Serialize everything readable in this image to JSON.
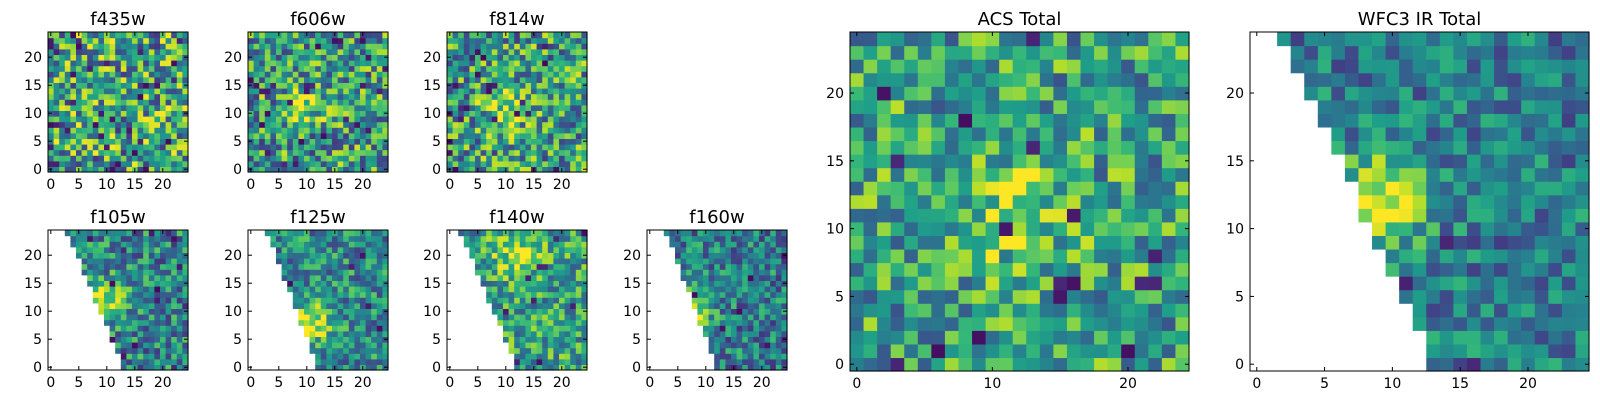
{
  "chart_data": [
    {
      "type": "heatmap",
      "title": "f435w",
      "colormap": "viridis",
      "grid": false,
      "xlim": [
        -0.5,
        24.5
      ],
      "ylim": [
        -0.5,
        24.5
      ],
      "xticks": [
        0,
        5,
        10,
        15,
        20
      ],
      "yticks": [
        0,
        5,
        10,
        15,
        20
      ],
      "xtick_labels": [
        "0",
        "5",
        "10",
        "15",
        "20"
      ],
      "ytick_labels": [
        "0",
        "5",
        "10",
        "15",
        "20"
      ],
      "pattern": {
        "kind": "noise",
        "base": 0.58,
        "amp": 0.42,
        "seed": 11,
        "dark": 0.05
      }
    },
    {
      "type": "heatmap",
      "title": "f606w",
      "colormap": "viridis",
      "grid": false,
      "xlim": [
        -0.5,
        24.5
      ],
      "ylim": [
        -0.5,
        24.5
      ],
      "xticks": [
        0,
        5,
        10,
        15,
        20
      ],
      "yticks": [
        0,
        5,
        10,
        15,
        20
      ],
      "xtick_labels": [
        "0",
        "5",
        "10",
        "15",
        "20"
      ],
      "ytick_labels": [
        "0",
        "5",
        "10",
        "15",
        "20"
      ],
      "pattern": {
        "kind": "blob",
        "base": 0.55,
        "amp": 0.38,
        "seed": 23,
        "dark": 0.04,
        "peak": [
          10,
          12
        ],
        "strength": 0.32
      }
    },
    {
      "type": "heatmap",
      "title": "f814w",
      "colormap": "viridis",
      "grid": false,
      "xlim": [
        -0.5,
        24.5
      ],
      "ylim": [
        -0.5,
        24.5
      ],
      "xticks": [
        0,
        5,
        10,
        15,
        20
      ],
      "yticks": [
        0,
        5,
        10,
        15,
        20
      ],
      "xtick_labels": [
        "0",
        "5",
        "10",
        "15",
        "20"
      ],
      "ytick_labels": [
        "0",
        "5",
        "10",
        "15",
        "20"
      ],
      "pattern": {
        "kind": "blob",
        "base": 0.56,
        "amp": 0.38,
        "seed": 37,
        "dark": 0.04,
        "peak": [
          10,
          11
        ],
        "strength": 0.34
      }
    },
    {
      "type": "heatmap",
      "title": "f105w",
      "colormap": "viridis",
      "grid": false,
      "xlim": [
        -0.5,
        24.5
      ],
      "ylim": [
        -0.5,
        24.5
      ],
      "xticks": [
        0,
        5,
        10,
        15,
        20
      ],
      "yticks": [
        0,
        5,
        10,
        15,
        20
      ],
      "xtick_labels": [
        "0",
        "5",
        "10",
        "15",
        "20"
      ],
      "ytick_labels": [
        "0",
        "5",
        "10",
        "15",
        "20"
      ],
      "pattern": {
        "kind": "wedge",
        "base": 0.45,
        "amp": 0.3,
        "seed": 41,
        "dark": 0.03,
        "peak": [
          10,
          12
        ],
        "strength": 0.5,
        "edge_top": 3,
        "edge_bottom": 13
      }
    },
    {
      "type": "heatmap",
      "title": "f125w",
      "colormap": "viridis",
      "grid": false,
      "xlim": [
        -0.5,
        24.5
      ],
      "ylim": [
        -0.5,
        24.5
      ],
      "xticks": [
        0,
        5,
        10,
        15,
        20
      ],
      "yticks": [
        0,
        5,
        10,
        15,
        20
      ],
      "xtick_labels": [
        "0",
        "5",
        "10",
        "15",
        "20"
      ],
      "ytick_labels": [
        "0",
        "5",
        "10",
        "15",
        "20"
      ],
      "pattern": {
        "kind": "wedge",
        "base": 0.48,
        "amp": 0.28,
        "seed": 53,
        "dark": 0.02,
        "peak": [
          11,
          8
        ],
        "strength": 0.5,
        "edge_top": 3,
        "edge_bottom": 12
      }
    },
    {
      "type": "heatmap",
      "title": "f140w",
      "colormap": "viridis",
      "grid": false,
      "xlim": [
        -0.5,
        24.5
      ],
      "ylim": [
        -0.5,
        24.5
      ],
      "xticks": [
        0,
        5,
        10,
        15,
        20
      ],
      "yticks": [
        0,
        5,
        10,
        15,
        20
      ],
      "xtick_labels": [
        "0",
        "5",
        "10",
        "15",
        "20"
      ],
      "ytick_labels": [
        "0",
        "5",
        "10",
        "15",
        "20"
      ],
      "pattern": {
        "kind": "wedge",
        "base": 0.58,
        "amp": 0.3,
        "seed": 67,
        "dark": 0.02,
        "peak": [
          12,
          20
        ],
        "strength": 0.35,
        "edge_top": 2,
        "edge_bottom": 12
      }
    },
    {
      "type": "heatmap",
      "title": "f160w",
      "colormap": "viridis",
      "grid": false,
      "xlim": [
        -0.5,
        24.5
      ],
      "ylim": [
        -0.5,
        24.5
      ],
      "xticks": [
        0,
        5,
        10,
        15,
        20
      ],
      "yticks": [
        0,
        5,
        10,
        15,
        20
      ],
      "xtick_labels": [
        "0",
        "5",
        "10",
        "15",
        "20"
      ],
      "ytick_labels": [
        "0",
        "5",
        "10",
        "15",
        "20"
      ],
      "pattern": {
        "kind": "wedge",
        "base": 0.42,
        "amp": 0.28,
        "seed": 79,
        "dark": 0.03,
        "peak": [
          8,
          11
        ],
        "strength": 0.5,
        "edge_top": 3,
        "edge_bottom": 12
      }
    },
    {
      "type": "heatmap",
      "title": "ACS Total",
      "colormap": "viridis",
      "grid": false,
      "xlim": [
        -0.5,
        24.5
      ],
      "ylim": [
        -0.5,
        24.5
      ],
      "xticks": [
        0,
        10,
        20
      ],
      "yticks": [
        0,
        5,
        10,
        15,
        20
      ],
      "xtick_labels": [
        "0",
        "10",
        "20"
      ],
      "ytick_labels": [
        "0",
        "5",
        "10",
        "15",
        "20"
      ],
      "pattern": {
        "kind": "blob",
        "base": 0.58,
        "amp": 0.32,
        "seed": 91,
        "dark": 0.03,
        "peak": [
          12,
          11
        ],
        "strength": 0.3
      }
    },
    {
      "type": "heatmap",
      "title": "WFC3 IR Total",
      "colormap": "viridis",
      "grid": false,
      "xlim": [
        -0.5,
        24.5
      ],
      "ylim": [
        -0.5,
        24.5
      ],
      "xticks": [
        0,
        5,
        10,
        15,
        20
      ],
      "yticks": [
        0,
        5,
        10,
        15,
        20
      ],
      "xtick_labels": [
        "0",
        "5",
        "10",
        "15",
        "20"
      ],
      "ytick_labels": [
        "0",
        "5",
        "10",
        "15",
        "20"
      ],
      "pattern": {
        "kind": "wedge",
        "base": 0.42,
        "amp": 0.24,
        "seed": 103,
        "dark": 0.02,
        "peak": [
          9,
          12
        ],
        "strength": 0.55,
        "edge_top": 2,
        "edge_bottom": 13
      }
    }
  ]
}
